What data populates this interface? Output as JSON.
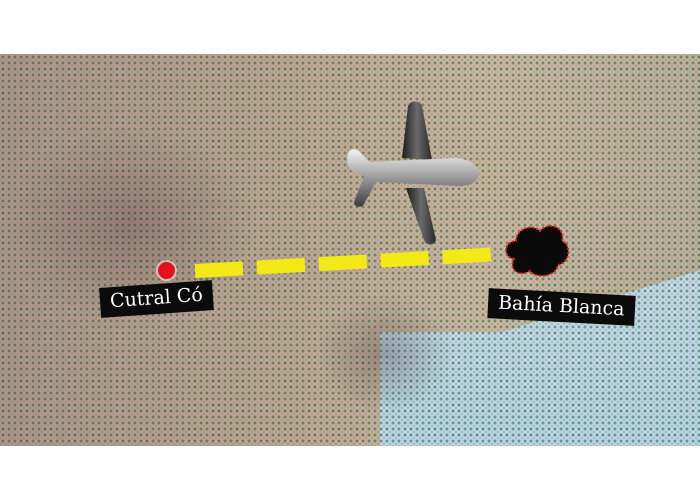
{
  "map": {
    "origin": {
      "name": "Cutral Có",
      "marker_color": "#e4121b"
    },
    "destination": {
      "name": "Bahía Blanca"
    },
    "route": {
      "style": "dashed",
      "color": "#f2e917"
    },
    "icons": {
      "aircraft": "airplane-icon",
      "incident": "smoke-cloud-icon"
    },
    "colors": {
      "land": "#b9ad96",
      "sea": "#bfe0ea",
      "label_bg": "#0b0b0b",
      "label_text": "#ffffff"
    }
  }
}
